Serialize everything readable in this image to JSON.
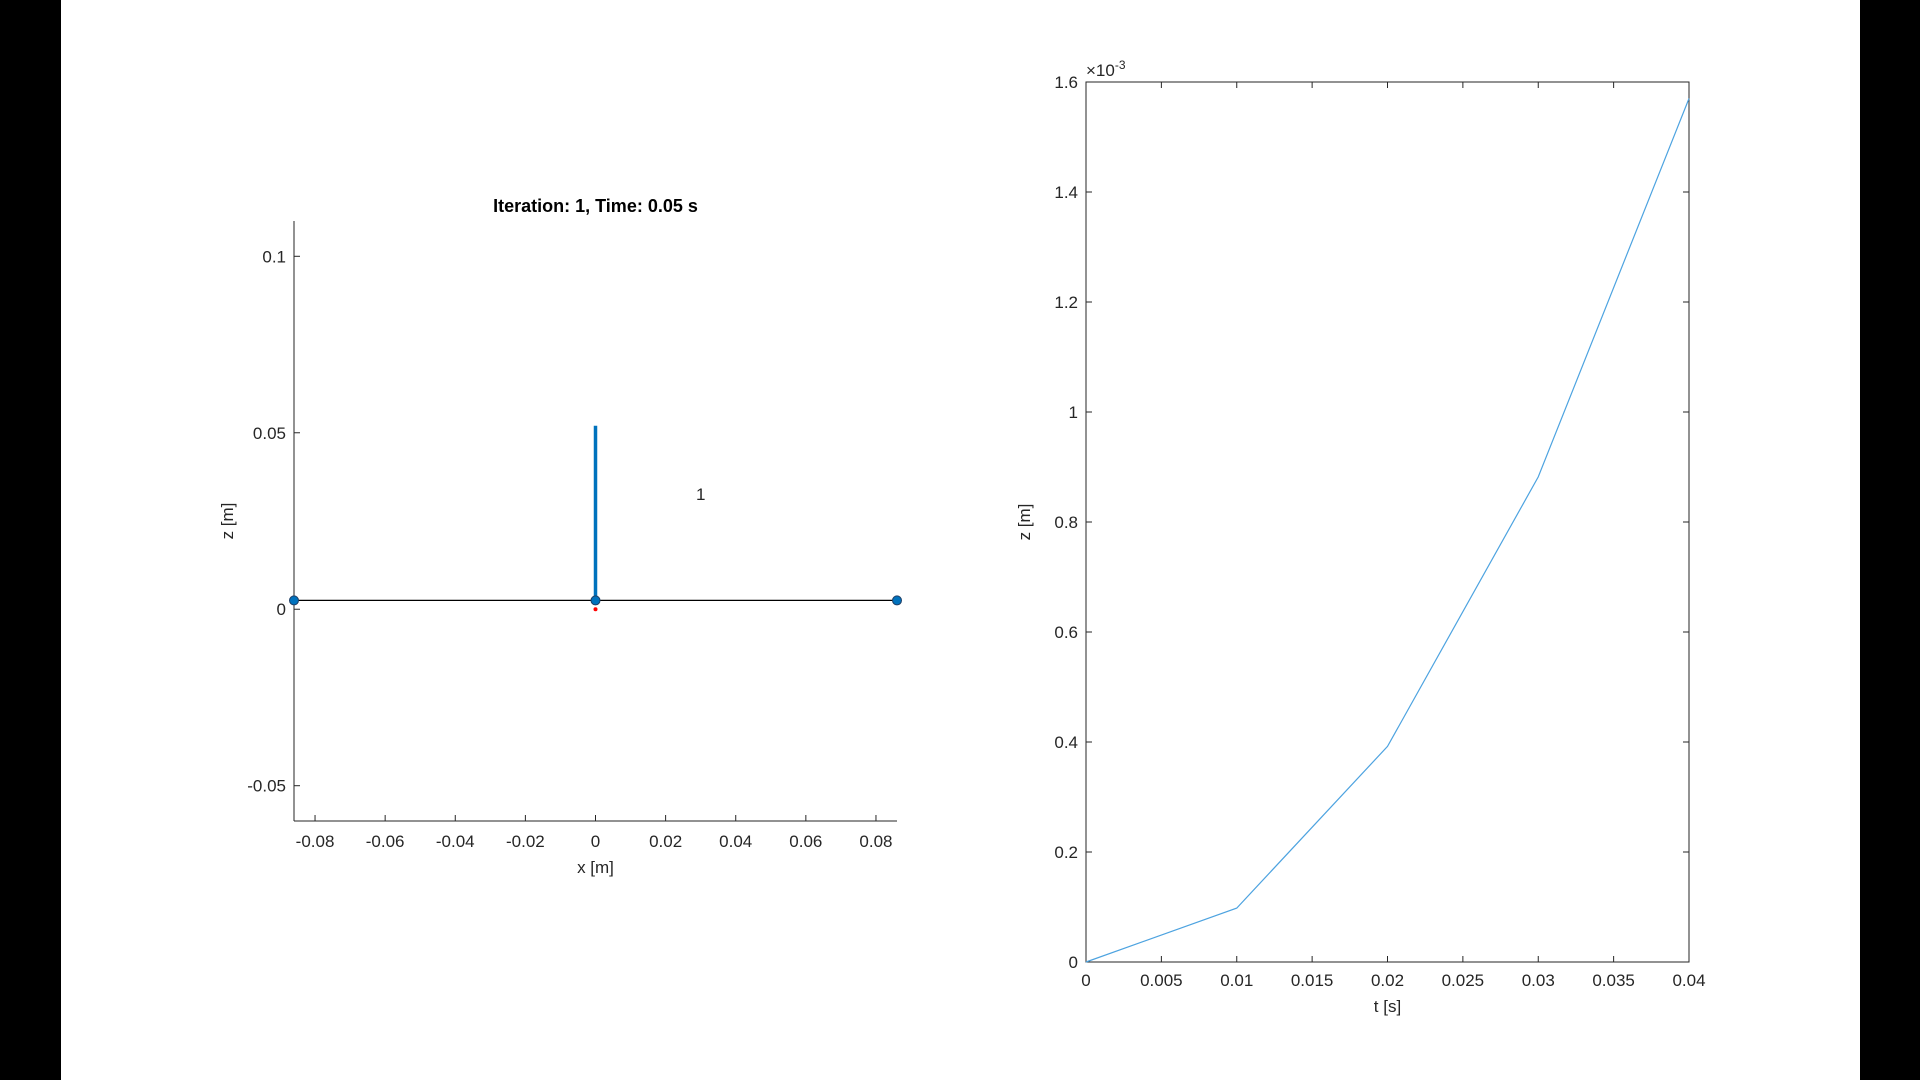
{
  "chart_data": [
    {
      "type": "scatter",
      "title": "Iteration: 1, Time: 0.05 s",
      "xlabel": "x [m]",
      "ylabel": "z [m]",
      "xlim": [
        -0.086,
        0.086
      ],
      "ylim": [
        -0.06,
        0.11
      ],
      "xticks": [
        -0.08,
        -0.06,
        -0.04,
        -0.02,
        0,
        0.02,
        0.04,
        0.06,
        0.08
      ],
      "xtick_labels": [
        "-0.08",
        "-0.06",
        "-0.04",
        "-0.02",
        "0",
        "0.02",
        "0.04",
        "0.06",
        "0.08"
      ],
      "yticks": [
        -0.05,
        0,
        0.05,
        0.1
      ],
      "ytick_labels": [
        "-0.05",
        "0",
        "0.05",
        "0.1"
      ],
      "grid": false,
      "box": "left-bottom",
      "annotation": {
        "text": "1",
        "x": 0.03,
        "z": 0.031
      },
      "rod": {
        "x": 0,
        "z_start": 0.0025,
        "z_end": 0.052,
        "color": "#0072BD"
      },
      "baseline": {
        "x": [
          -0.086,
          0.086
        ],
        "z": [
          0.0025,
          0.0025
        ],
        "color": "#000000"
      },
      "nodes": {
        "x": [
          -0.086,
          0,
          0.086
        ],
        "z": [
          0.0025,
          0.0025,
          0.0025
        ],
        "color": "#0072BD"
      },
      "marker": {
        "x": 0,
        "z": 0,
        "color": "#ff0000"
      }
    },
    {
      "type": "line",
      "title": "",
      "xlabel": "t [s]",
      "ylabel": "z [m]",
      "exponent_label": "×10",
      "exponent_power": "-3",
      "xlim": [
        0,
        0.04
      ],
      "ylim": [
        0,
        1.6
      ],
      "xticks": [
        0,
        0.005,
        0.01,
        0.015,
        0.02,
        0.025,
        0.03,
        0.035,
        0.04
      ],
      "xtick_labels": [
        "0",
        "0.005",
        "0.01",
        "0.015",
        "0.02",
        "0.025",
        "0.03",
        "0.035",
        "0.04"
      ],
      "yticks": [
        0,
        0.2,
        0.4,
        0.6,
        0.8,
        1,
        1.2,
        1.4,
        1.6
      ],
      "ytick_labels": [
        "0",
        "0.2",
        "0.4",
        "0.6",
        "0.8",
        "1",
        "1.2",
        "1.4",
        "1.6"
      ],
      "grid": false,
      "box": "full",
      "series": [
        {
          "x": [
            0,
            0.01,
            0.02,
            0.03,
            0.04
          ],
          "values": [
            0,
            0.098,
            0.392,
            0.882,
            1.57
          ],
          "color": "#4DA3E0"
        }
      ]
    }
  ]
}
